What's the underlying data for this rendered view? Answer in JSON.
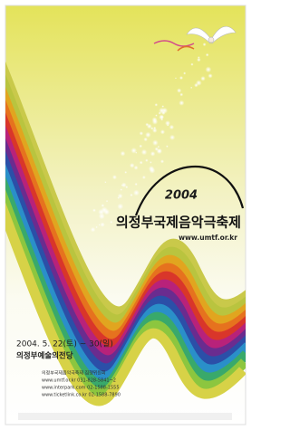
{
  "poster": {
    "year": "2004",
    "festival_name": "의정부국제음악극축제",
    "url": "www.umtf.or.kr",
    "date": "2004. 5. 22(토) ~ 30(일)",
    "venue": "의정부예술의전당",
    "info": [
      "의정부국제음악극축제 집행위원회",
      "www.umtf.or.kr  031-828-5841~2",
      "www.interpark.com  02-1588-1555",
      "www.ticketlink.co.kr  02-1588-7890"
    ]
  }
}
